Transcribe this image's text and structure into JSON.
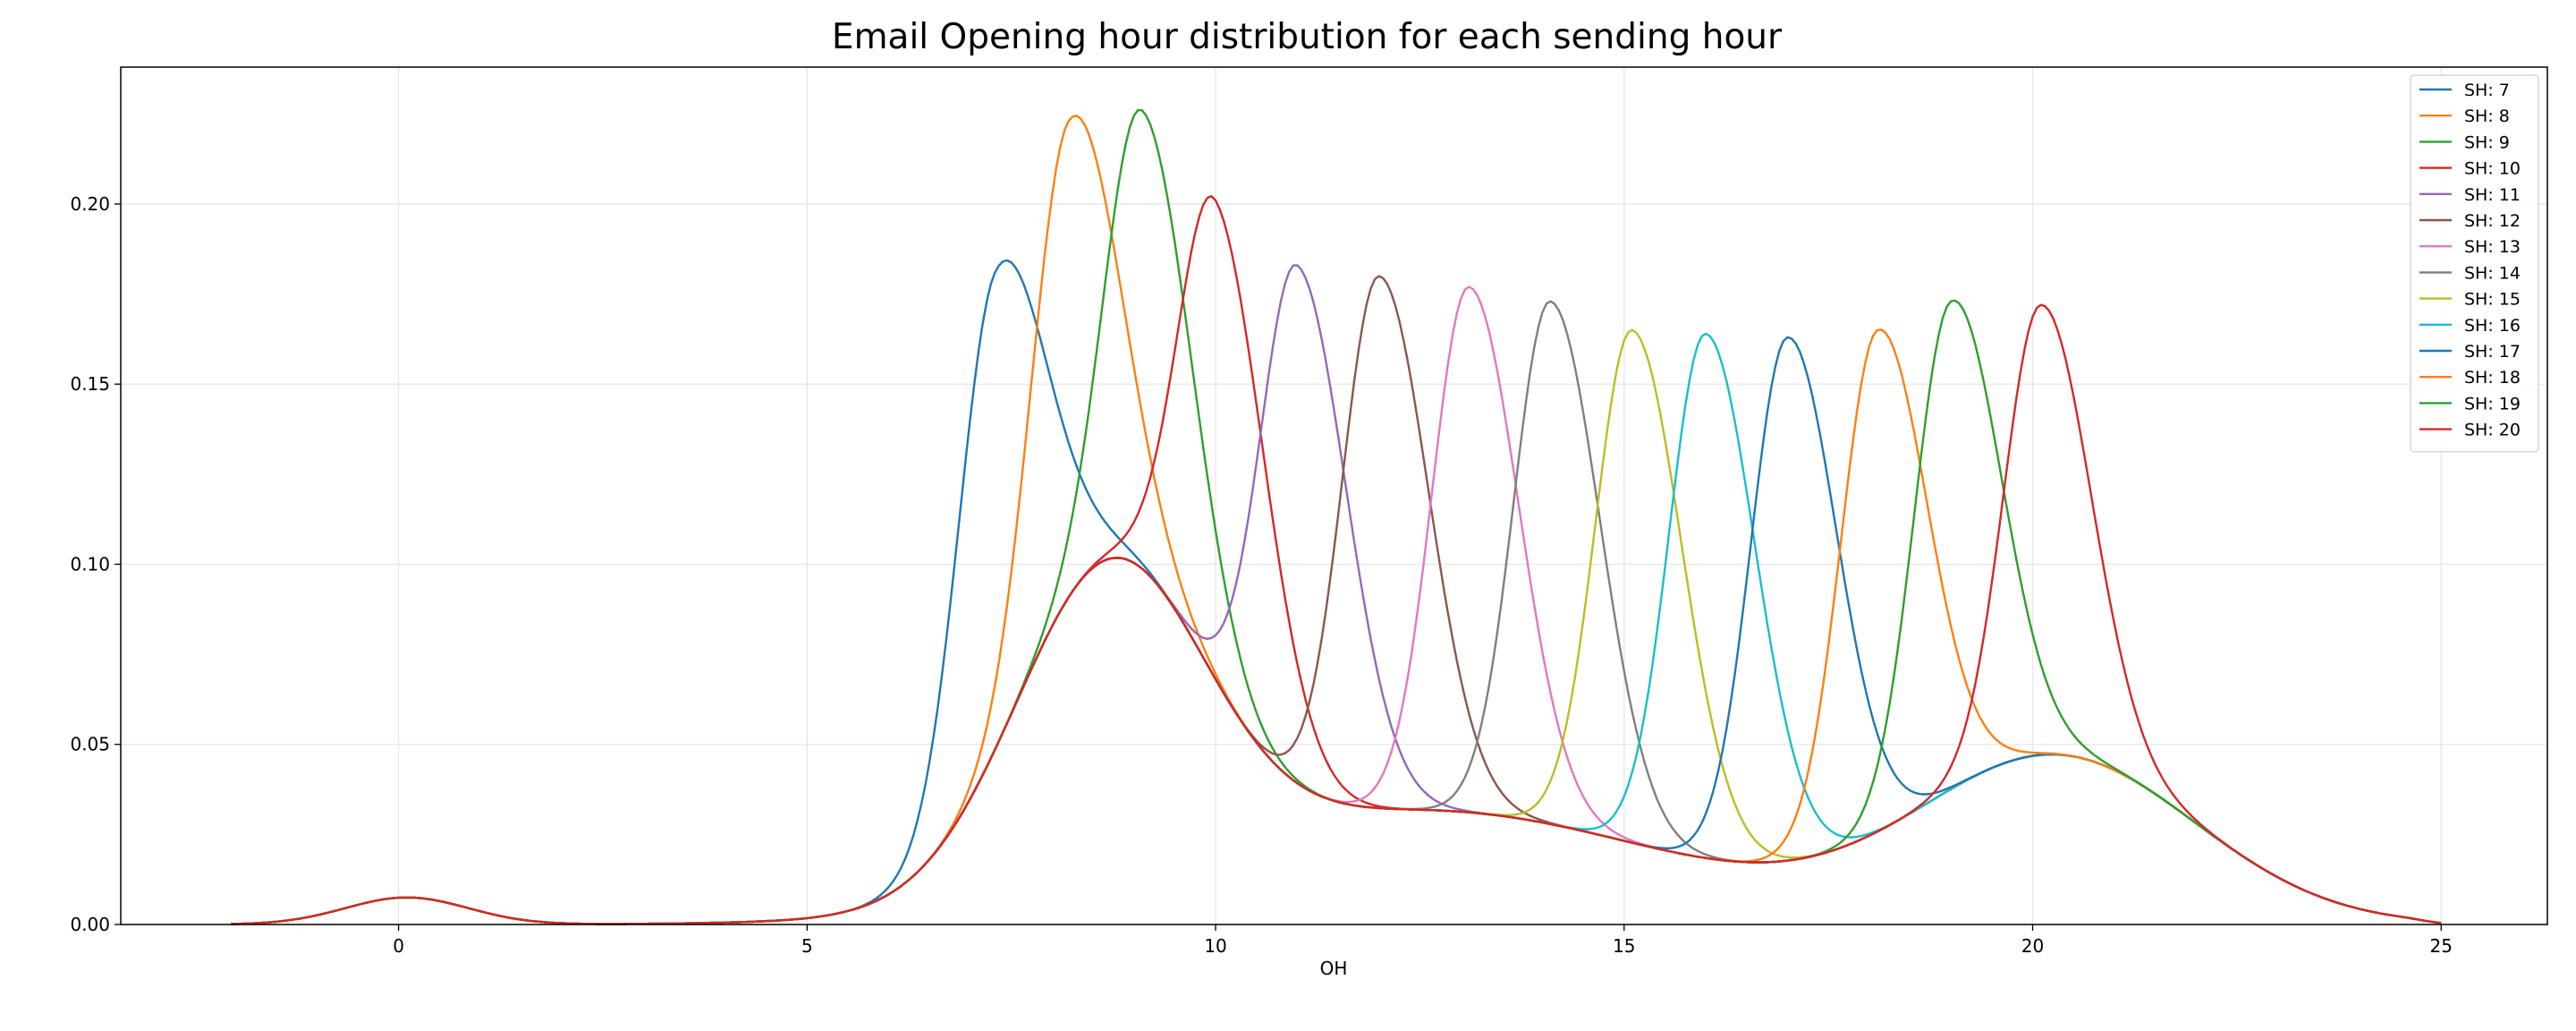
{
  "chart_data": {
    "type": "line",
    "title": "Email Opening hour distribution for each sending hour",
    "xlabel": "OH",
    "ylabel": "",
    "xlim": [
      -3.4,
      26.3
    ],
    "ylim": [
      0,
      0.238
    ],
    "xticks": [
      0,
      5,
      10,
      15,
      20,
      25
    ],
    "yticks": [
      0.0,
      0.05,
      0.1,
      0.15,
      0.2
    ],
    "ytick_labels": [
      "0.00",
      "0.05",
      "0.10",
      "0.15",
      "0.20"
    ],
    "grid": true,
    "legend_position": "top-right",
    "series": [
      {
        "name": "SH: 7",
        "color": "#1f77b4",
        "peak_x": 7.3,
        "peak_y": 0.181
      },
      {
        "name": "SH: 8",
        "color": "#ff7f0e",
        "peak_x": 8.2,
        "peak_y": 0.223
      },
      {
        "name": "SH: 9",
        "color": "#2ca02c",
        "peak_x": 9.1,
        "peak_y": 0.226
      },
      {
        "name": "SH: 10",
        "color": "#d62728",
        "peak_x": 10.0,
        "peak_y": 0.201
      },
      {
        "name": "SH: 11",
        "color": "#9467bd",
        "peak_x": 11.0,
        "peak_y": 0.183
      },
      {
        "name": "SH: 12",
        "color": "#8c564b",
        "peak_x": 12.0,
        "peak_y": 0.18
      },
      {
        "name": "SH: 13",
        "color": "#e377c2",
        "peak_x": 13.1,
        "peak_y": 0.177
      },
      {
        "name": "SH: 14",
        "color": "#7f7f7f",
        "peak_x": 14.1,
        "peak_y": 0.173
      },
      {
        "name": "SH: 15",
        "color": "#bcbd22",
        "peak_x": 15.1,
        "peak_y": 0.165
      },
      {
        "name": "SH: 16",
        "color": "#17becf",
        "peak_x": 16.0,
        "peak_y": 0.164
      },
      {
        "name": "SH: 17",
        "color": "#1f77b4",
        "peak_x": 17.0,
        "peak_y": 0.163
      },
      {
        "name": "SH: 18",
        "color": "#ff7f0e",
        "peak_x": 18.1,
        "peak_y": 0.165
      },
      {
        "name": "SH: 19",
        "color": "#2ca02c",
        "peak_x": 19.0,
        "peak_y": 0.173
      },
      {
        "name": "SH: 20",
        "color": "#d62728",
        "peak_x": 20.1,
        "peak_y": 0.172
      }
    ]
  }
}
